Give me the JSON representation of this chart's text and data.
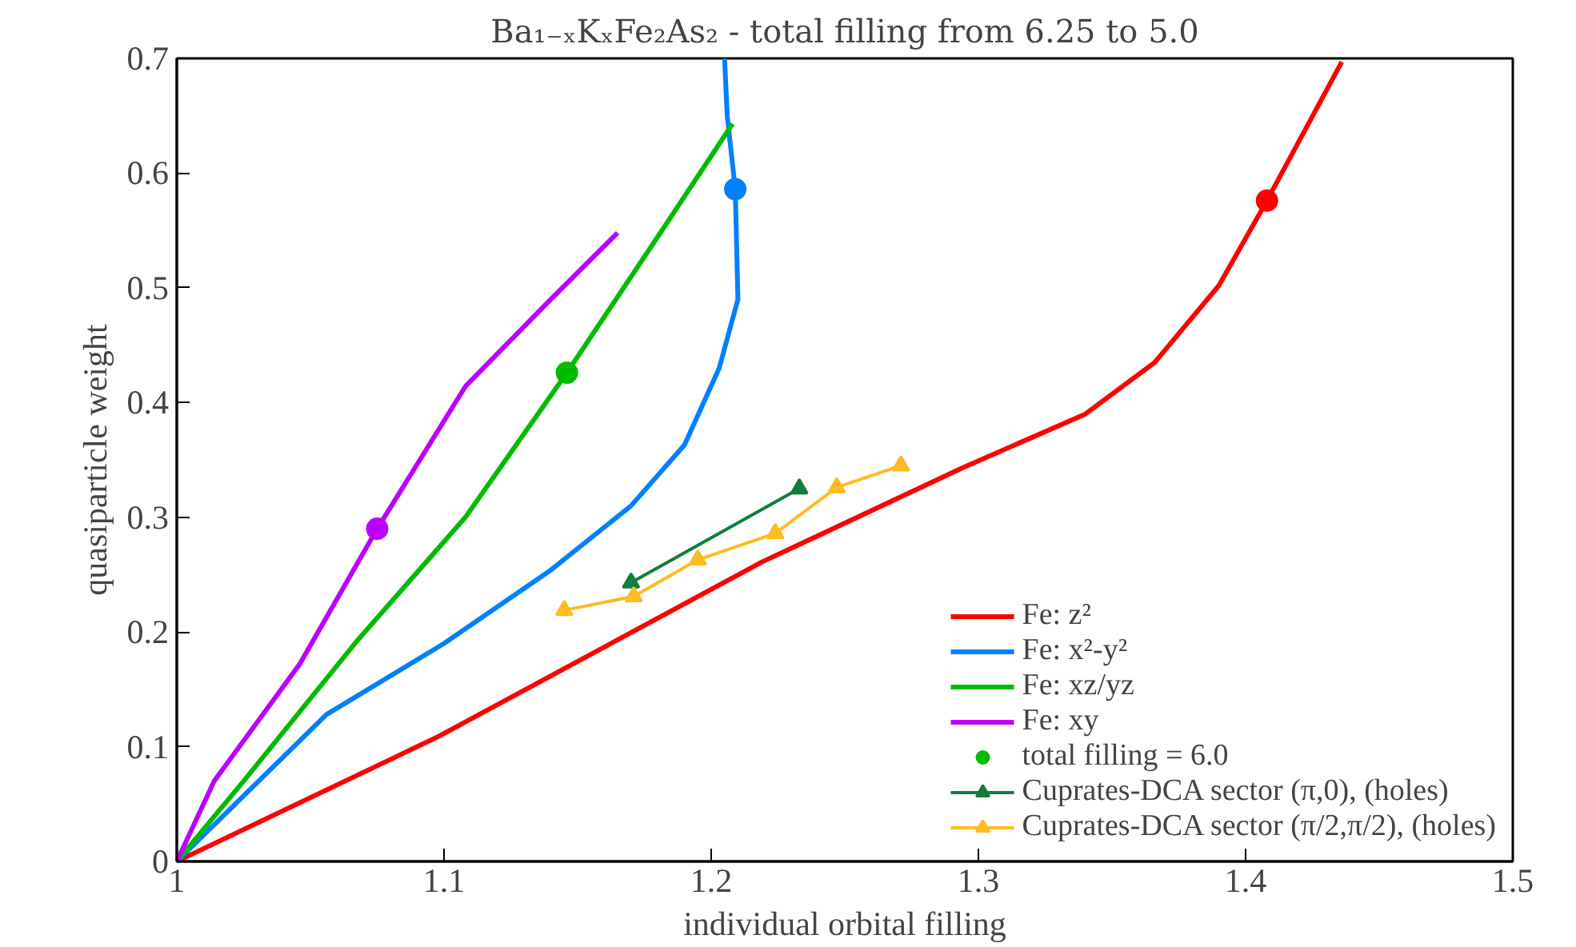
{
  "chart_data": {
    "type": "line",
    "title": "Ba₁₋ₓKₓFe₂As₂ - total filling from 6.25 to 5.0",
    "xlabel": "individual orbital filling",
    "ylabel": "quasiparticle weight",
    "xlim": [
      1,
      1.5
    ],
    "ylim": [
      0,
      0.7
    ],
    "xticks": [
      1,
      1.1,
      1.2,
      1.3,
      1.4,
      1.5
    ],
    "yticks": [
      0,
      0.1,
      0.2,
      0.3,
      0.4,
      0.5,
      0.6,
      0.7
    ],
    "legend": "bottom right",
    "series": [
      {
        "name": "Fe: z²",
        "color": "#ff0000",
        "x": [
          1,
          1.098,
          1.219,
          1.294,
          1.34,
          1.366,
          1.39,
          1.408,
          1.436
        ],
        "values": [
          0,
          0.109,
          0.261,
          0.343,
          0.39,
          0.435,
          0.502,
          0.576,
          0.697
        ]
      },
      {
        "name": "Fe: x²-y²",
        "color": "#0080ff",
        "x": [
          1,
          1.056,
          1.1,
          1.14,
          1.17,
          1.19,
          1.203,
          1.21,
          1.209,
          1.206,
          1.205
        ],
        "values": [
          0,
          0.128,
          0.19,
          0.254,
          0.31,
          0.363,
          0.43,
          0.49,
          0.586,
          0.65,
          0.7
        ]
      },
      {
        "name": "Fe: xz/yz",
        "color": "#00bb00",
        "x": [
          1,
          1.025,
          1.067,
          1.108,
          1.146,
          1.181,
          1.208
        ],
        "values": [
          0,
          0.07,
          0.191,
          0.3,
          0.426,
          0.548,
          0.643
        ]
      },
      {
        "name": "Fe: xy",
        "color": "#bb00ff",
        "x": [
          1,
          1.014,
          1.046,
          1.075,
          1.108,
          1.14,
          1.165
        ],
        "values": [
          0,
          0.07,
          0.172,
          0.29,
          0.414,
          0.49,
          0.548
        ]
      },
      {
        "name": "total filling = 6.0",
        "type": "scatter",
        "marker": "circle",
        "colors": [
          "#00bb00",
          "#ff0000",
          "#0080ff",
          "#bb00ff"
        ],
        "x": [
          1.146,
          1.408,
          1.209,
          1.075
        ],
        "values": [
          0.426,
          0.576,
          0.586,
          0.29
        ]
      },
      {
        "name": "Cuprates-DCA sector (π,0), (holes)",
        "color": "#117d3f",
        "marker": "triangle",
        "x": [
          1.17,
          1.233
        ],
        "values": [
          0.243,
          0.325
        ]
      },
      {
        "name": "Cuprates-DCA sector (π/2,π/2), (holes)",
        "color": "#ffbb22",
        "marker": "triangle",
        "x": [
          1.145,
          1.171,
          1.195,
          1.224,
          1.247,
          1.271
        ],
        "values": [
          0.219,
          0.231,
          0.263,
          0.286,
          0.326,
          0.345
        ]
      }
    ]
  }
}
